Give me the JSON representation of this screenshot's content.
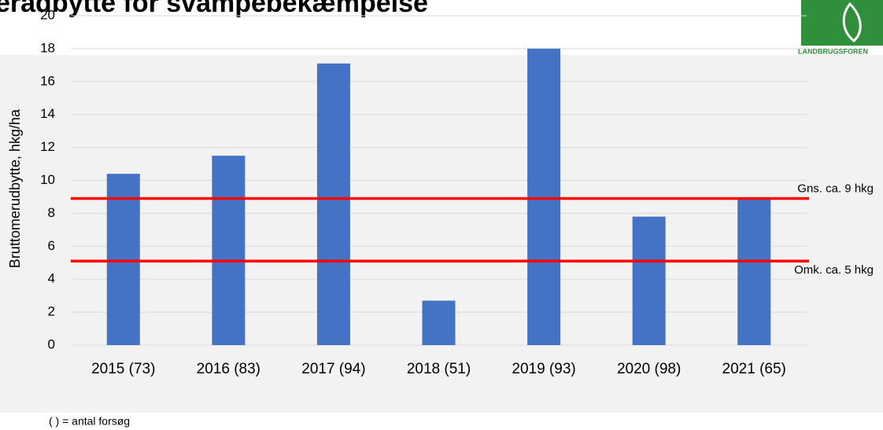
{
  "chart_data": {
    "type": "bar",
    "title": "eradbytte for svampebekæmpelse",
    "logo_text": "LANDBRUGSFOREN",
    "y_label": "Bruttomerudbytte, hkg/ha",
    "footnote": "( ) = antal forsøg",
    "categories": [
      "2015 (73)",
      "2016 (83)",
      "2017 (94)",
      "2018 (51)",
      "2019 (93)",
      "2020 (98)",
      "2021 (65)"
    ],
    "values": [
      10.4,
      11.5,
      17.1,
      2.7,
      18,
      7.8,
      8.9
    ],
    "color": "#4472c4",
    "ylim": [
      0,
      20
    ],
    "yticks": [
      0,
      2,
      4,
      6,
      8,
      10,
      12,
      14,
      16,
      18,
      20
    ],
    "grid": true,
    "reference_lines": [
      {
        "value": 8.9,
        "label": "Gns. ca. 9 hkg",
        "color": "#ff0000"
      },
      {
        "value": 5.1,
        "label": "Omk. ca. 5 hkg",
        "color": "#ff0000"
      }
    ]
  }
}
